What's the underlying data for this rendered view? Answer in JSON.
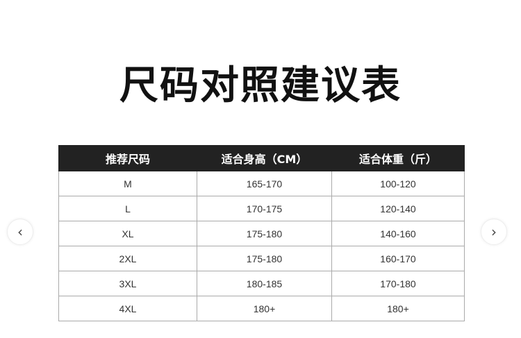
{
  "title": "尺码对照建议表",
  "table": {
    "headers": [
      "推荐尺码",
      "适合身高（CM）",
      "适合体重（斤）"
    ],
    "rows": [
      [
        "M",
        "165-170",
        "100-120"
      ],
      [
        "L",
        "170-175",
        "120-140"
      ],
      [
        "XL",
        "175-180",
        "140-160"
      ],
      [
        "2XL",
        "175-180",
        "160-170"
      ],
      [
        "3XL",
        "180-185",
        "170-180"
      ],
      [
        "4XL",
        "180+",
        "180+"
      ]
    ]
  },
  "carousel": {
    "prev_icon": "‹",
    "next_icon": "›"
  }
}
